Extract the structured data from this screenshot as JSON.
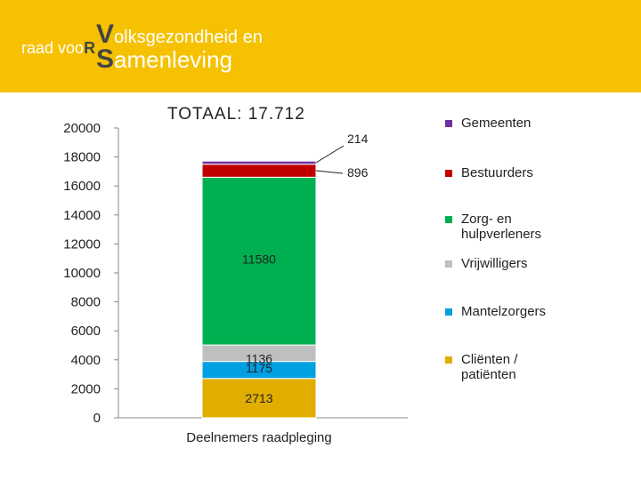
{
  "logo": {
    "prefix": "raad voo",
    "prefix_cap": "R",
    "line1_cap": "V",
    "line1_rest": "olksgezondheid en",
    "line2_cap": "S",
    "line2_rest": "amenleving"
  },
  "colors": {
    "header": "#f6c100",
    "gemeenten": "#7030a0",
    "bestuurders": "#c00000",
    "zorg": "#00b050",
    "vrijwilligers": "#bfbfbf",
    "mantelzorgers": "#00a0e3",
    "clienten": "#e0ad00"
  },
  "chart_data": {
    "type": "bar",
    "stacked": true,
    "title": "TOTAAL: 17.712",
    "categories": [
      "Deelnemers raadpleging"
    ],
    "ylim": [
      0,
      20000
    ],
    "yticks": [
      0,
      2000,
      4000,
      6000,
      8000,
      10000,
      12000,
      14000,
      16000,
      18000,
      20000
    ],
    "grid": false,
    "legend_position": "right",
    "series": [
      {
        "name": "Cliënten / patiënten",
        "values": [
          2713
        ],
        "color": "#e0ad00",
        "label": "2713"
      },
      {
        "name": "Mantelzorgers",
        "values": [
          1175
        ],
        "color": "#00a0e3",
        "label": "1175"
      },
      {
        "name": "Vrijwilligers",
        "values": [
          1136
        ],
        "color": "#bfbfbf",
        "label": "1136"
      },
      {
        "name": "Zorg- en hulpverleners",
        "values": [
          11580
        ],
        "color": "#00b050",
        "label": "11580"
      },
      {
        "name": "Bestuurders",
        "values": [
          896
        ],
        "color": "#c00000",
        "label": "896"
      },
      {
        "name": "Gemeenten",
        "values": [
          214
        ],
        "color": "#7030a0",
        "label": "214"
      }
    ]
  }
}
